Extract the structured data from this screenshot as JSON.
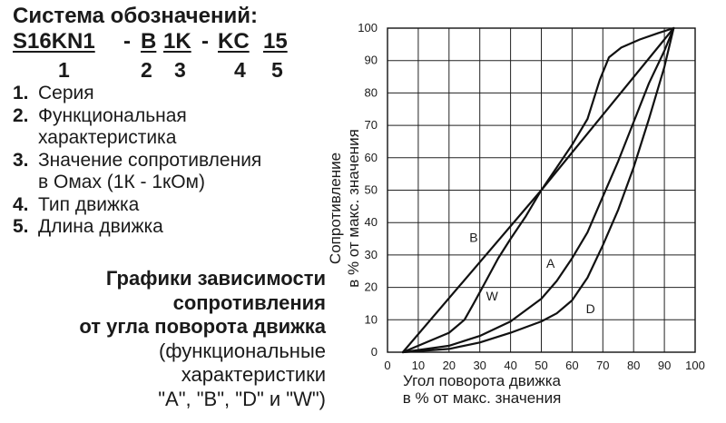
{
  "header": {
    "title": "Система обозначений:",
    "code_parts": [
      "S16KN1",
      "-",
      "B",
      "1K",
      "-",
      "KC",
      "15"
    ],
    "code_numbers": [
      "1",
      "2",
      "3",
      "4",
      "5"
    ]
  },
  "legend_items": [
    {
      "num": "1.",
      "lines": [
        "Серия"
      ]
    },
    {
      "num": "2.",
      "lines": [
        "Функциональная",
        "характеристика"
      ]
    },
    {
      "num": "3.",
      "lines": [
        "Значение сопротивления",
        "в Омах (1К - 1кОм)"
      ]
    },
    {
      "num": "4.",
      "lines": [
        "Тип движка"
      ]
    },
    {
      "num": "5.",
      "lines": [
        "Длина движка"
      ]
    }
  ],
  "graph_description": {
    "bold_lines": [
      "Графики зависимости",
      "сопротивления",
      "от угла поворота движка"
    ],
    "normal_lines": [
      "(функциональные",
      "характеристики",
      "\"A\", \"B\", \"D\" и \"W\")"
    ]
  },
  "chart_data": {
    "type": "line",
    "xlabel": [
      "Угол поворота движка",
      "в % от макс. значения"
    ],
    "ylabel": [
      "Сопротивление",
      "в % от макс. значения"
    ],
    "xlim": [
      0,
      100
    ],
    "ylim": [
      0,
      100
    ],
    "xticks": [
      0,
      10,
      20,
      30,
      40,
      50,
      60,
      70,
      80,
      90,
      100
    ],
    "yticks": [
      0,
      10,
      20,
      30,
      40,
      50,
      60,
      70,
      80,
      90,
      100
    ],
    "grid": true,
    "series": [
      {
        "name": "B",
        "points": [
          [
            5,
            0
          ],
          [
            50,
            50
          ],
          [
            93,
            100
          ]
        ]
      },
      {
        "name": "A",
        "points": [
          [
            5,
            0
          ],
          [
            20,
            2
          ],
          [
            30,
            5
          ],
          [
            40,
            9.5
          ],
          [
            50,
            16.5
          ],
          [
            55,
            22
          ],
          [
            60,
            29
          ],
          [
            65,
            37
          ],
          [
            70,
            48
          ],
          [
            75,
            59
          ],
          [
            80,
            71
          ],
          [
            85,
            83
          ],
          [
            90,
            93
          ],
          [
            93,
            100
          ]
        ]
      },
      {
        "name": "D",
        "points": [
          [
            5,
            0
          ],
          [
            20,
            1
          ],
          [
            30,
            3
          ],
          [
            40,
            6
          ],
          [
            50,
            9.5
          ],
          [
            55,
            12
          ],
          [
            60,
            16
          ],
          [
            65,
            23
          ],
          [
            70,
            33
          ],
          [
            75,
            44
          ],
          [
            80,
            57
          ],
          [
            85,
            72
          ],
          [
            90,
            88
          ],
          [
            93,
            100
          ]
        ]
      },
      {
        "name": "W",
        "points": [
          [
            5,
            0
          ],
          [
            10,
            2
          ],
          [
            20,
            6
          ],
          [
            25,
            10
          ],
          [
            28,
            15
          ],
          [
            32,
            22
          ],
          [
            36,
            29
          ],
          [
            40,
            35
          ],
          [
            45,
            42
          ],
          [
            50,
            50
          ],
          [
            55,
            57
          ],
          [
            60,
            64
          ],
          [
            65,
            72
          ],
          [
            69,
            84
          ],
          [
            72,
            91
          ],
          [
            76,
            94
          ],
          [
            82,
            96.5
          ],
          [
            88,
            98.5
          ],
          [
            93,
            100
          ]
        ]
      }
    ],
    "series_labels": [
      {
        "name": "B",
        "x": 28,
        "y": 34
      },
      {
        "name": "A",
        "x": 53,
        "y": 26
      },
      {
        "name": "W",
        "x": 34,
        "y": 16
      },
      {
        "name": "D",
        "x": 66,
        "y": 12
      }
    ]
  }
}
